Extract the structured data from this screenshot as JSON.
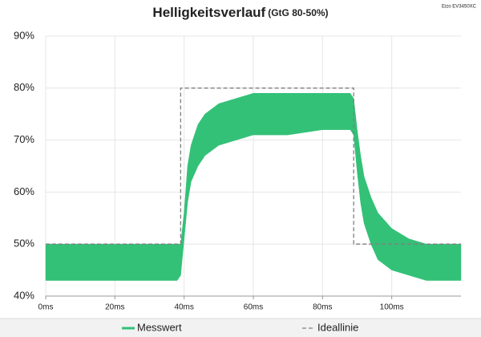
{
  "chart_data": {
    "type": "band-line",
    "title": "Helligkeitsverlauf",
    "subtitle": "(GtG 80-50%)",
    "annotation": "Eizo EV3450XC",
    "xlim": [
      0,
      120
    ],
    "ylim": [
      40,
      90
    ],
    "xticks": [
      {
        "value": 0,
        "label": "0ms"
      },
      {
        "value": 20,
        "label": "20ms"
      },
      {
        "value": 40,
        "label": "40ms"
      },
      {
        "value": 60,
        "label": "60ms"
      },
      {
        "value": 80,
        "label": "80ms"
      },
      {
        "value": 100,
        "label": "100ms"
      }
    ],
    "yticks": [
      {
        "value": 40,
        "label": "40%"
      },
      {
        "value": 50,
        "label": "50%"
      },
      {
        "value": 60,
        "label": "60%"
      },
      {
        "value": 70,
        "label": "70%"
      },
      {
        "value": 80,
        "label": "80%"
      },
      {
        "value": 90,
        "label": "90%"
      }
    ],
    "grid": true,
    "legend": "bottom",
    "series": [
      {
        "name": "Messwert",
        "color": "#33c177",
        "x": [
          0,
          38,
          39,
          40,
          41,
          42,
          44,
          46,
          50,
          55,
          60,
          70,
          80,
          88,
          89,
          90,
          91,
          92,
          94,
          96,
          100,
          105,
          110,
          120
        ],
        "low": [
          43,
          43,
          44,
          51,
          58,
          62,
          65,
          67,
          69,
          70,
          71,
          71,
          72,
          72,
          71,
          64,
          58,
          54,
          50,
          47,
          45,
          44,
          43,
          43
        ],
        "high": [
          50,
          50,
          50,
          56,
          65,
          69,
          73,
          75,
          77,
          78,
          79,
          79,
          79,
          79,
          78,
          72,
          67,
          63,
          59,
          56,
          53,
          51,
          50,
          50
        ]
      },
      {
        "name": "Ideallinie",
        "color": "#7f7f7f",
        "x": [
          0,
          39,
          39,
          89,
          89,
          120
        ],
        "values": [
          50,
          50,
          80,
          80,
          50,
          50
        ]
      }
    ]
  }
}
